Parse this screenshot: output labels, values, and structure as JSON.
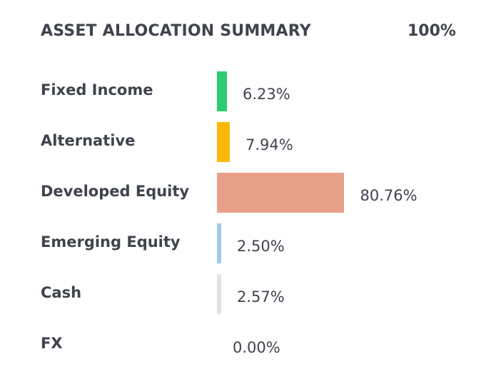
{
  "chart_data": {
    "type": "bar",
    "orientation": "horizontal",
    "title": "ASSET ALLOCATION SUMMARY",
    "total_label": "100%",
    "categories": [
      "Fixed Income",
      "Alternative",
      "Developed Equity",
      "Emerging Equity",
      "Cash",
      "FX"
    ],
    "values": [
      6.23,
      7.94,
      80.76,
      2.5,
      2.57,
      0.0
    ],
    "value_labels": [
      "6.23%",
      "7.94%",
      "80.76%",
      "2.50%",
      "2.57%",
      "0.00%"
    ],
    "colors": [
      "#2ecc71",
      "#f9b808",
      "#e8a088",
      "#9fcbe6",
      "#e2e2e2",
      "#ffffff"
    ],
    "xlim": [
      0,
      100
    ],
    "grid": false,
    "legend": "none"
  }
}
